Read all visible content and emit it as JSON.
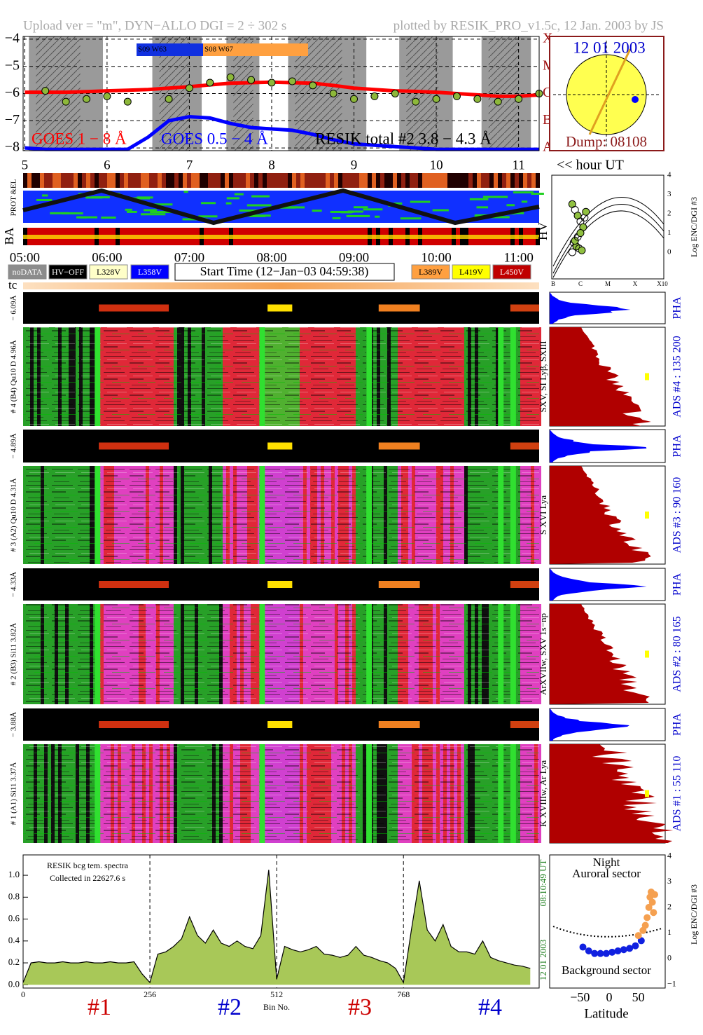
{
  "header": {
    "left": "Upload ver = \"m\", DYN−ALLO DGI =   2 ÷ 302 s",
    "right": "plotted by RESIK_PRO_v1.5c, 12 Jan. 2003 by JS"
  },
  "chart_data": [
    {
      "type": "line",
      "x": [
        5.0,
        5.25,
        5.5,
        5.75,
        6.0,
        6.25,
        6.5,
        6.75,
        7.0,
        7.25,
        7.5,
        7.75,
        8.0,
        8.25,
        8.5,
        8.75,
        9.0,
        9.25,
        9.5,
        9.75,
        10.0,
        10.25,
        10.5,
        10.75,
        11.0,
        11.25
      ],
      "series": [
        {
          "name": "GOES 1 − 8 Å",
          "color": "#ff0000",
          "values": [
            -5.95,
            -5.95,
            -5.95,
            -5.93,
            -5.9,
            -5.88,
            -5.85,
            -5.8,
            -5.75,
            -5.68,
            -5.62,
            -5.6,
            -5.58,
            -5.6,
            -5.62,
            -5.7,
            -5.8,
            -5.85,
            -5.9,
            -5.92,
            -5.95,
            -6.0,
            -6.05,
            -6.1,
            -6.1,
            -6.05
          ]
        },
        {
          "name": "GOES 0.5 − 4 Å",
          "color": "#0000ff",
          "values": [
            -8.0,
            -8.05,
            -8.05,
            -8.05,
            -8.05,
            -8.05,
            -7.6,
            -7.0,
            -6.85,
            -6.9,
            -7.1,
            -7.25,
            -7.3,
            -7.35,
            -7.5,
            -7.7,
            -7.85,
            -7.9,
            -7.95,
            -8.0,
            -8.05,
            -8.05,
            -8.05,
            -8.05,
            -8.05,
            -8.05
          ]
        },
        {
          "name": "RESIK total #2  3.8 − 4.3 Å",
          "color": "#8db83a",
          "mode": "markers",
          "values": [
            null,
            -5.9,
            -6.3,
            -6.2,
            -6.1,
            -6.3,
            null,
            -6.2,
            -5.8,
            -5.6,
            -5.4,
            -5.5,
            -5.6,
            -5.55,
            -5.7,
            -6.0,
            -6.2,
            -6.1,
            -6.0,
            -6.3,
            -6.2,
            -6.1,
            -6.2,
            -6.3,
            -6.2,
            -6.0
          ]
        }
      ],
      "xlim": [
        4.98,
        11.25
      ],
      "xticks": [
        5,
        6,
        7,
        8,
        9,
        10,
        11
      ],
      "ylim": [
        -8.1,
        -3.9
      ],
      "yticks": [
        {
          "value": -4,
          "label": "−4"
        },
        {
          "value": -5,
          "label": "−5"
        },
        {
          "value": -6,
          "label": "−6"
        },
        {
          "value": -7,
          "label": "−7"
        },
        {
          "value": -8,
          "label": "−8"
        }
      ],
      "y2lim": [
        -8.1,
        -3.9
      ],
      "y2ticks": [
        {
          "value": -4,
          "label": "X"
        },
        {
          "value": -5,
          "label": "M"
        },
        {
          "value": -6,
          "label": "C"
        },
        {
          "value": -7,
          "label": "B"
        },
        {
          "value": -8,
          "label": "A"
        }
      ],
      "grid": true,
      "annotations": [
        {
          "text": "S09 W63",
          "color": "#1030e0"
        },
        {
          "text": "S08 W67",
          "color": "#ffa040"
        }
      ]
    },
    {
      "type": "scatter",
      "x": [
        -6.3,
        -6.2,
        -6.1,
        -6.0,
        -5.9,
        -6.25,
        -6.15,
        -6.05,
        -5.95,
        -6.3,
        -6.2,
        -6.1,
        -6.0,
        -5.85,
        -5.8
      ],
      "series": [
        {
          "color": "#90c040",
          "values": [
            2.5,
            2.2,
            1.9,
            1.6,
            1.3,
            0.5,
            0.3,
            0.2,
            0.1,
            0.0,
            0.6,
            0.8,
            1.0,
            1.8,
            2.1
          ]
        }
      ],
      "xlim": [
        -7.05,
        -2.95
      ],
      "xticks": [
        {
          "value": -7,
          "label": "B"
        },
        {
          "value": -6,
          "label": "C"
        },
        {
          "value": -5,
          "label": "M"
        },
        {
          "value": -4,
          "label": "X"
        },
        {
          "value": -3,
          "label": "X10"
        }
      ],
      "ylim": [
        -1.38,
        4.0
      ],
      "yticks": [
        0,
        1,
        2,
        3,
        4
      ],
      "y_label": "Log ENC/DGI #3",
      "annotation": "HV"
    },
    {
      "type": "area",
      "x": [
        0,
        16,
        32,
        48,
        64,
        80,
        96,
        112,
        128,
        144,
        160,
        176,
        192,
        208,
        224,
        240,
        256,
        272,
        288,
        304,
        320,
        336,
        352,
        368,
        384,
        400,
        416,
        432,
        448,
        464,
        480,
        496,
        512,
        528,
        544,
        560,
        576,
        592,
        608,
        624,
        640,
        656,
        672,
        688,
        704,
        720,
        736,
        752,
        768,
        784,
        800,
        816,
        832,
        848,
        864,
        880,
        896,
        912,
        928,
        944,
        960,
        976,
        992,
        1008,
        1024
      ],
      "series": [
        {
          "color": "#a8c858",
          "line_color": "#000000",
          "values": [
            0.02,
            0.2,
            0.21,
            0.2,
            0.2,
            0.21,
            0.2,
            0.2,
            0.21,
            0.2,
            0.2,
            0.21,
            0.2,
            0.2,
            0.21,
            0.1,
            0.02,
            0.28,
            0.3,
            0.35,
            0.42,
            0.62,
            0.45,
            0.38,
            0.5,
            0.38,
            0.35,
            0.4,
            0.35,
            0.33,
            0.45,
            1.05,
            0.05,
            0.35,
            0.32,
            0.3,
            0.32,
            0.35,
            0.28,
            0.27,
            0.25,
            0.27,
            0.35,
            0.27,
            0.25,
            0.22,
            0.2,
            0.15,
            0.02,
            0.5,
            0.95,
            0.5,
            0.4,
            0.55,
            0.35,
            0.3,
            0.3,
            0.28,
            0.4,
            0.25,
            0.22,
            0.2,
            0.18,
            0.17,
            0.15
          ]
        }
      ],
      "xlim": [
        0,
        1042
      ],
      "xticks": [
        0,
        256,
        512,
        768
      ],
      "ylim": [
        -0.03,
        1.186
      ],
      "yticks": [
        {
          "value": 0,
          "label": "0.0"
        },
        0.2,
        0.4,
        0.6,
        0.8,
        {
          "value": 1,
          "label": "1.0"
        }
      ],
      "x_label": "Bin No.",
      "annotations": [
        "RESIK bcg tem. spectra",
        "Collected in 22627.6 s"
      ],
      "side_labels": [
        "12 01 2003",
        "08:10:49 UT"
      ],
      "sections": [
        {
          "text": "#1",
          "color": "#cc0000"
        },
        {
          "text": "#2",
          "color": "#0000cc"
        },
        {
          "text": "#3",
          "color": "#cc0000"
        },
        {
          "text": "#4",
          "color": "#0000cc"
        }
      ]
    },
    {
      "type": "scatter",
      "series": [
        {
          "color": "#1020e0",
          "x": [
            -45,
            -35,
            -25,
            -15,
            -5,
            5,
            15,
            25,
            35,
            45,
            55
          ],
          "values": [
            0.45,
            0.3,
            0.2,
            0.2,
            0.2,
            0.25,
            0.3,
            0.35,
            0.4,
            0.5,
            0.7
          ]
        },
        {
          "color": "#f5a050",
          "x": [
            50,
            58,
            62,
            65,
            68,
            70,
            72,
            74,
            76,
            78
          ],
          "values": [
            0.9,
            1.1,
            1.3,
            1.6,
            2.0,
            2.4,
            2.6,
            2.2,
            1.8,
            2.5
          ]
        }
      ],
      "xlim": [
        -102,
        96
      ],
      "xticks": [
        {
          "value": -50,
          "label": "−50"
        },
        0,
        50
      ],
      "ylim": [
        -1.15,
        4.05
      ],
      "yticks": [
        {
          "value": -1,
          "label": "−1"
        },
        0,
        1,
        2,
        3,
        4
      ],
      "x_label": "Latitude",
      "y_label": "Log ENC/DGI #3",
      "annotations": [
        "Night",
        "Auroral sector",
        "Background sector"
      ]
    }
  ],
  "sun": {
    "date": "12 01 2003",
    "dump": "Dump: 08108"
  },
  "hour_ut": "<< hour UT",
  "strip_labels": [
    "PROT &EL",
    "BA"
  ],
  "times": [
    "05:00",
    "06:00",
    "07:00",
    "08:00",
    "09:00",
    "10:00",
    "11:00"
  ],
  "legend": [
    {
      "label": "noDATA",
      "color": "#8c8c8c"
    },
    {
      "label": "HV−OFF",
      "color": "#000000"
    },
    {
      "label": "L328V",
      "color": "#ffffc8"
    },
    {
      "label": "L358V",
      "color": "#0000ff"
    },
    {
      "label": "L389V",
      "color": "#ffa040"
    },
    {
      "label": "L419V",
      "color": "#ffff00"
    },
    {
      "label": "L450V",
      "color": "#c00000"
    }
  ],
  "start_time": "Start Time (12−Jan−03 04:59:38)",
  "tc": "tc",
  "panels": [
    {
      "pha_label": "− 6.09Å",
      "ads_label": "# 4 (B4) Qu10 D 4.96Å",
      "pha": "PHA",
      "ads": "ADS #4 :   135 200",
      "lines": "SXV, SI Lyβ, SXIII"
    },
    {
      "pha_label": "− 4.89Å",
      "ads_label": "# 3 (A2) Qu10 D 4.31Å",
      "pha": "PHA",
      "ads": "ADS #3 :   90 160",
      "lines": "S XVI Lya"
    },
    {
      "pha_label": "− 4.33Å",
      "ads_label": "# 2 (B3) Si11 3.82Å",
      "pha": "PHA",
      "ads": "ADS #2 :   80 165",
      "lines": "ArXVIIw, SXV 1s−np"
    },
    {
      "pha_label": "− 3.88Å",
      "ads_label": "# 1 (A1) Si11 3.37Å",
      "pha": "PHA",
      "ads": "ADS #1 :   55 110",
      "lines": "K XVIIIw, Ar Lya"
    }
  ]
}
